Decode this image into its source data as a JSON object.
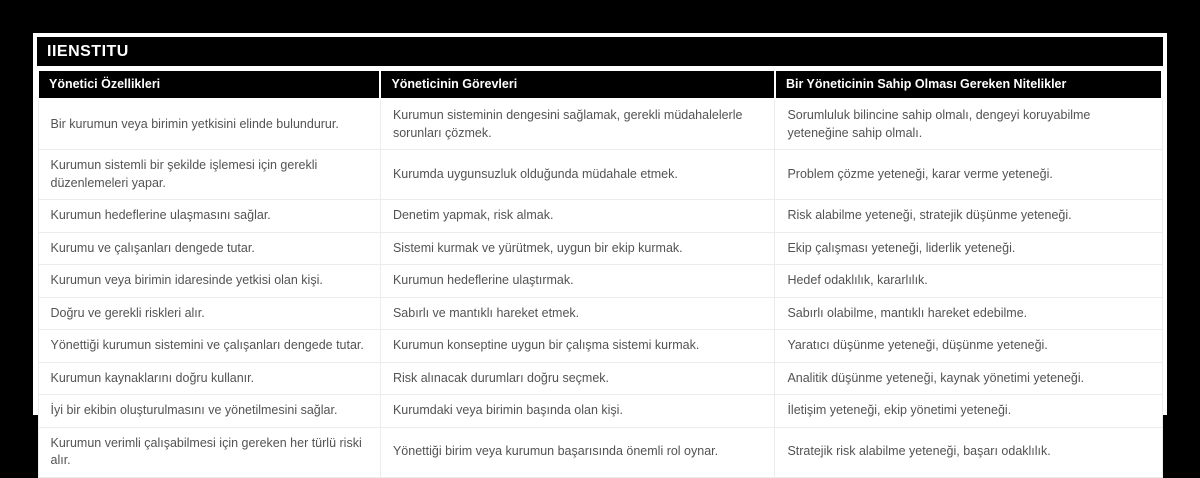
{
  "header": {
    "title": "IIENSTITU"
  },
  "table": {
    "columns": [
      "Yönetici Özellikleri",
      "Yöneticinin Görevleri",
      "Bir Yöneticinin Sahip Olması Gereken Nitelikler"
    ],
    "rows": [
      [
        "Bir kurumun veya birimin yetkisini elinde bulundurur.",
        "Kurumun sisteminin dengesini sağlamak, gerekli müdahalelerle sorunları çözmek.",
        "Sorumluluk bilincine sahip olmalı, dengeyi koruyabilme yeteneğine sahip olmalı."
      ],
      [
        "Kurumun sistemli bir şekilde işlemesi için gerekli düzenlemeleri yapar.",
        "Kurumda uygunsuzluk olduğunda müdahale etmek.",
        "Problem çözme yeteneği, karar verme yeteneği."
      ],
      [
        "Kurumun hedeflerine ulaşmasını sağlar.",
        "Denetim yapmak, risk almak.",
        "Risk alabilme yeteneği, stratejik düşünme yeteneği."
      ],
      [
        "Kurumu ve çalışanları dengede tutar.",
        "Sistemi kurmak ve yürütmek, uygun bir ekip kurmak.",
        "Ekip çalışması yeteneği, liderlik yeteneği."
      ],
      [
        "Kurumun veya birimin idaresinde yetkisi olan kişi.",
        "Kurumun hedeflerine ulaştırmak.",
        "Hedef odaklılık, kararlılık."
      ],
      [
        "Doğru ve gerekli riskleri alır.",
        "Sabırlı ve mantıklı hareket etmek.",
        "Sabırlı olabilme, mantıklı hareket edebilme."
      ],
      [
        "Yönettiği kurumun sistemini ve çalışanları dengede tutar.",
        "Kurumun konseptine uygun bir çalışma sistemi kurmak.",
        "Yaratıcı düşünme yeteneği, düşünme yeteneği."
      ],
      [
        "Kurumun kaynaklarını doğru kullanır.",
        "Risk alınacak durumları doğru seçmek.",
        "Analitik düşünme yeteneği, kaynak yönetimi yeteneği."
      ],
      [
        "İyi bir ekibin oluşturulmasını ve yönetilmesini sağlar.",
        "Kurumdaki veya birimin başında olan kişi.",
        "İletişim yeteneği, ekip yönetimi yeteneği."
      ],
      [
        "Kurumun verimli çalışabilmesi için gereken her türlü riski alır.",
        "Yönettiği birim veya kurumun başarısında önemli rol oynar.",
        "Stratejik risk alabilme yeteneği, başarı odaklılık."
      ]
    ]
  },
  "colors": {
    "page_background": "#000000",
    "card_background": "#ffffff",
    "header_bg": "#000000",
    "header_text": "#ffffff",
    "body_text": "#535353",
    "row_border": "#ececec"
  }
}
